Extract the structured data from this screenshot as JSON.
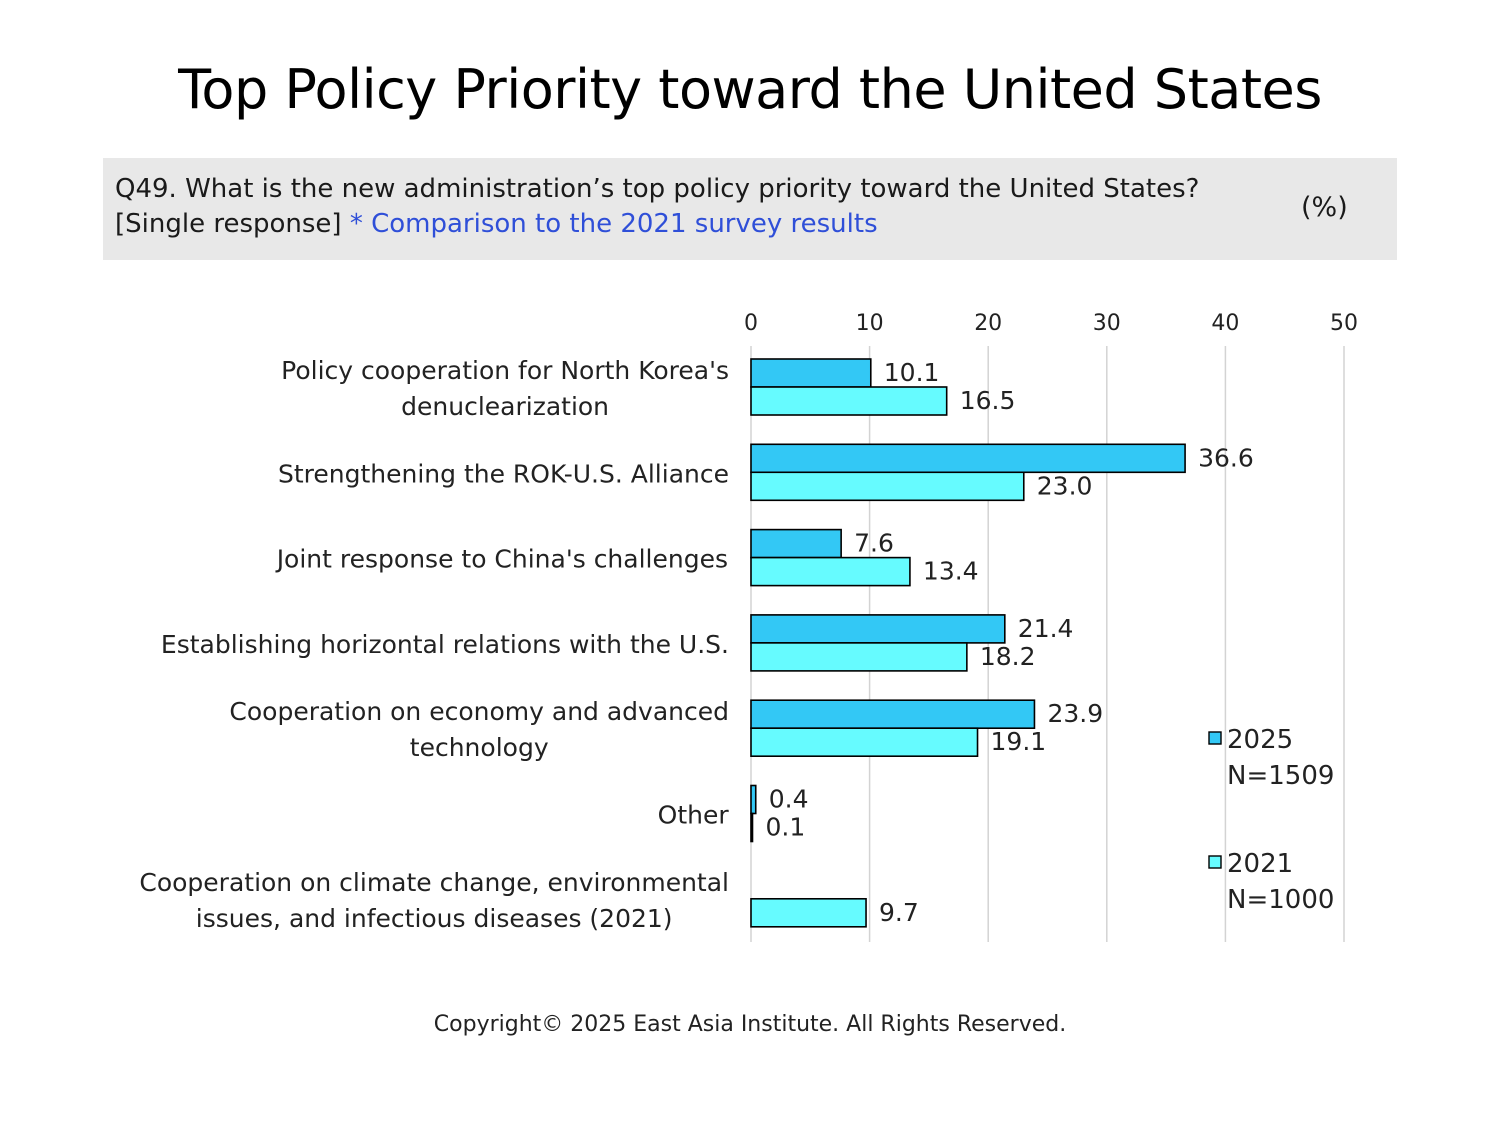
{
  "title": "Top Policy Priority toward the United States",
  "question": {
    "text": "Q49. What is the new administration’s top policy priority toward the United States?",
    "response_type": "[Single response]",
    "note": "* Comparison to the 2021 survey results",
    "unit": "(%)"
  },
  "copyright": "Copyright© 2025 East Asia Institute. All Rights Reserved.",
  "colors": {
    "series_2025": "#33c8f5",
    "series_2021": "#66fbff",
    "grid": "#d3d3d3",
    "note_blue": "#2f4fd8"
  },
  "chart_data": {
    "type": "bar",
    "orientation": "horizontal",
    "xlim": [
      0,
      50
    ],
    "xticks": [
      "0",
      "10",
      "20",
      "30",
      "40",
      "50"
    ],
    "grid": true,
    "legend_position": "right",
    "categories": [
      [
        "Policy cooperation for North Korea's",
        "denuclearization"
      ],
      [
        "Strengthening the ROK-U.S. Alliance"
      ],
      [
        "Joint response to China's challenges"
      ],
      [
        "Establishing horizontal relations with the U.S."
      ],
      [
        "Cooperation on economy and advanced",
        "technology"
      ],
      [
        "Other"
      ],
      [
        "Cooperation on climate change, environmental",
        "issues, and infectious diseases (2021)"
      ]
    ],
    "series": [
      {
        "name": "2025",
        "legend_sub": "N=1509",
        "values": [
          10.1,
          36.6,
          7.6,
          21.4,
          23.9,
          0.4,
          null
        ],
        "labels": [
          "10.1",
          "36.6",
          "7.6",
          "21.4",
          "23.9",
          "0.4",
          null
        ]
      },
      {
        "name": "2021",
        "legend_sub": "N=1000",
        "values": [
          16.5,
          23.0,
          13.4,
          18.2,
          19.1,
          0.1,
          9.7
        ],
        "labels": [
          "16.5",
          "23.0",
          "13.4",
          "18.2",
          "19.1",
          "0.1",
          "9.7"
        ]
      }
    ]
  }
}
